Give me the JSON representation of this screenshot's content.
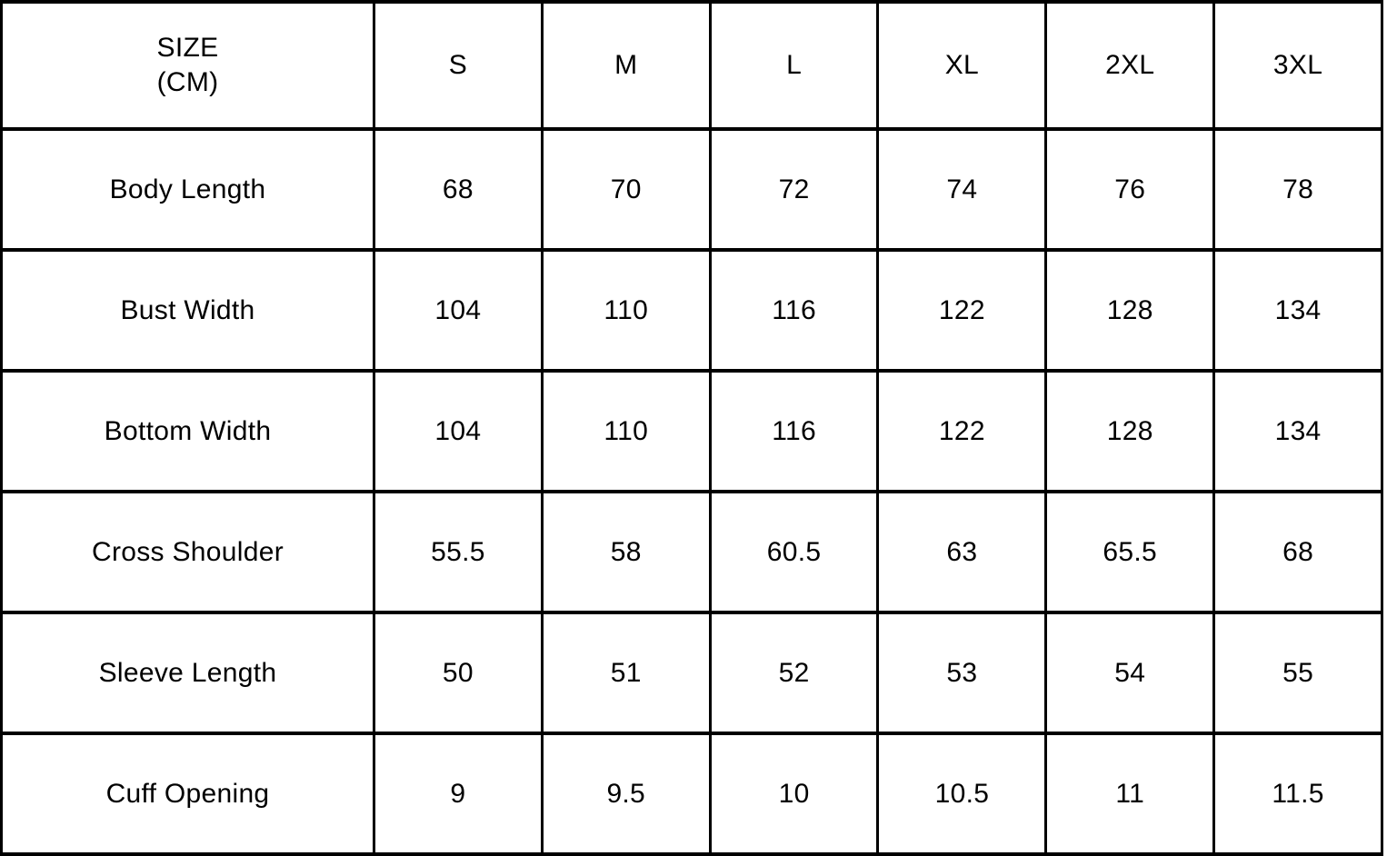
{
  "colors": {
    "background": "#ffffff",
    "border": "#000000",
    "text": "#000000"
  },
  "chart_data": {
    "type": "table",
    "unit": "CM",
    "corner_header": {
      "line1": "SIZE",
      "line2": "(CM)"
    },
    "size_columns": [
      "S",
      "M",
      "L",
      "XL",
      "2XL",
      "3XL"
    ],
    "rows": [
      {
        "label": "Body Length",
        "values": [
          "68",
          "70",
          "72",
          "74",
          "76",
          "78"
        ]
      },
      {
        "label": "Bust Width",
        "values": [
          "104",
          "110",
          "116",
          "122",
          "128",
          "134"
        ]
      },
      {
        "label": "Bottom Width",
        "values": [
          "104",
          "110",
          "116",
          "122",
          "128",
          "134"
        ]
      },
      {
        "label": "Cross Shoulder",
        "values": [
          "55.5",
          "58",
          "60.5",
          "63",
          "65.5",
          "68"
        ]
      },
      {
        "label": "Sleeve Length",
        "values": [
          "50",
          "51",
          "52",
          "53",
          "54",
          "55"
        ]
      },
      {
        "label": "Cuff Opening",
        "values": [
          "9",
          "9.5",
          "10",
          "10.5",
          "11",
          "11.5"
        ]
      }
    ]
  }
}
